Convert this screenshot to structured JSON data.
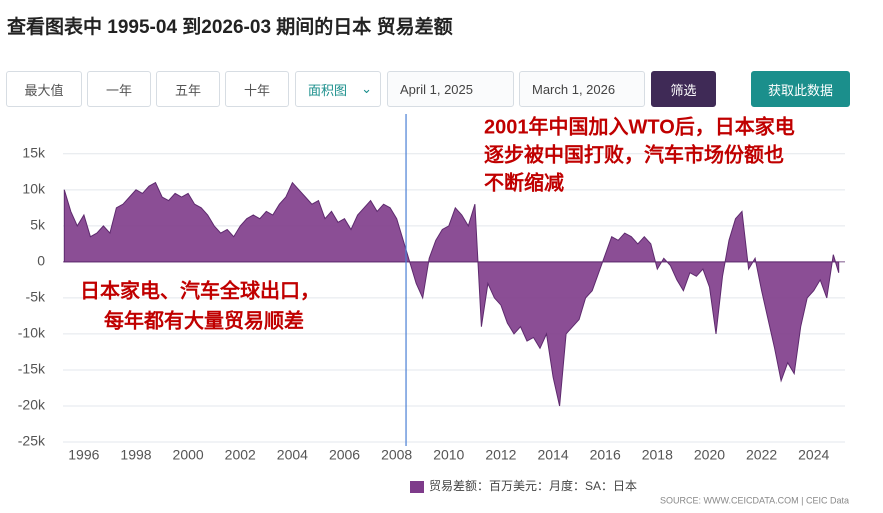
{
  "chart_data": {
    "type": "area",
    "title": "查看图表中 1995-04 到2026-03 期间的日本 贸易差额",
    "series": [
      {
        "name": "贸易差额：百万美元：月度：SA：日本",
        "color": "#7e3b8a",
        "x": [
          1995.25,
          1995.5,
          1995.75,
          1996,
          1996.25,
          1996.5,
          1996.75,
          1997,
          1997.25,
          1997.5,
          1997.75,
          1998,
          1998.25,
          1998.5,
          1998.75,
          1999,
          1999.25,
          1999.5,
          1999.75,
          2000,
          2000.25,
          2000.5,
          2000.75,
          2001,
          2001.25,
          2001.5,
          2001.75,
          2002,
          2002.25,
          2002.5,
          2002.75,
          2003,
          2003.25,
          2003.5,
          2003.75,
          2004,
          2004.25,
          2004.5,
          2004.75,
          2005,
          2005.25,
          2005.5,
          2005.75,
          2006,
          2006.25,
          2006.5,
          2006.75,
          2007,
          2007.25,
          2007.5,
          2007.75,
          2008,
          2008.25,
          2008.5,
          2008.75,
          2009,
          2009.25,
          2009.5,
          2009.75,
          2010,
          2010.25,
          2010.5,
          2010.75,
          2011,
          2011.25,
          2011.5,
          2011.75,
          2012,
          2012.25,
          2012.5,
          2012.75,
          2013,
          2013.25,
          2013.5,
          2013.75,
          2014,
          2014.25,
          2014.5,
          2014.75,
          2015,
          2015.25,
          2015.5,
          2015.75,
          2016,
          2016.25,
          2016.5,
          2016.75,
          2017,
          2017.25,
          2017.5,
          2017.75,
          2018,
          2018.25,
          2018.5,
          2018.75,
          2019,
          2019.25,
          2019.5,
          2019.75,
          2020,
          2020.25,
          2020.5,
          2020.75,
          2021,
          2021.25,
          2021.5,
          2021.75,
          2022,
          2022.25,
          2022.5,
          2022.75,
          2023,
          2023.25,
          2023.5,
          2023.75,
          2024,
          2024.25,
          2024.5,
          2024.75,
          2024.96
        ],
        "values": [
          10000,
          7000,
          5000,
          6500,
          3500,
          4000,
          5000,
          4000,
          7500,
          8000,
          9000,
          10000,
          9500,
          10500,
          11000,
          9000,
          8500,
          9500,
          9000,
          9500,
          8000,
          7500,
          6500,
          5000,
          4000,
          4500,
          3500,
          5000,
          6000,
          6500,
          6000,
          7000,
          6500,
          8000,
          9000,
          11000,
          10000,
          9000,
          8000,
          8500,
          6000,
          7000,
          5500,
          6000,
          4500,
          6500,
          7500,
          8500,
          7000,
          8000,
          7500,
          6000,
          3000,
          0,
          -3000,
          -5000,
          500,
          3000,
          4500,
          5000,
          7500,
          6500,
          5000,
          8000,
          -9000,
          -3000,
          -5000,
          -6000,
          -8500,
          -10000,
          -9000,
          -11000,
          -10500,
          -12000,
          -10000,
          -16000,
          -20000,
          -10000,
          -9000,
          -8000,
          -5000,
          -4000,
          -1500,
          1000,
          3500,
          3000,
          4000,
          3500,
          2500,
          3500,
          2500,
          -1000,
          500,
          -500,
          -2500,
          -4000,
          -1500,
          -2000,
          -1000,
          -3500,
          -10000,
          -2000,
          3000,
          6000,
          7000,
          -1000,
          500,
          -4000,
          -8000,
          -12000,
          -16500,
          -14000,
          -15500,
          -9000,
          -5000,
          -4000,
          -2500,
          -5000,
          1000,
          -1500
        ]
      }
    ],
    "xlim": [
      1995.2,
      2025.2
    ],
    "xticks": [
      1996,
      1998,
      2000,
      2002,
      2004,
      2006,
      2008,
      2010,
      2012,
      2014,
      2016,
      2018,
      2020,
      2022,
      2024
    ],
    "ylim": [
      -25000,
      16500
    ],
    "yticks": [
      {
        "value": 15000,
        "label": "15k"
      },
      {
        "value": 10000,
        "label": "10k"
      },
      {
        "value": 5000,
        "label": "5k"
      },
      0,
      {
        "value": -5000,
        "label": "-5k"
      },
      {
        "value": -10000,
        "label": "-10k"
      },
      {
        "value": -15000,
        "label": "-15k"
      },
      {
        "value": -20000,
        "label": "-20k"
      },
      {
        "value": -25000,
        "label": "-25k"
      }
    ],
    "grid": true,
    "reference_line": {
      "x": 2008.36,
      "color": "#4a7fd4"
    },
    "annotations": [
      {
        "lines": [
          "2001年中国加入WTO后，日本家电",
          "逐步被中国打败，汽车市场份额也",
          "不断缩减"
        ],
        "color": "#c00000"
      },
      {
        "lines": [
          "日本家电、汽车全球出口，",
          "每年都有大量贸易顺差"
        ],
        "color": "#c00000"
      }
    ],
    "source": "SOURCE: WWW.CEICDATA.COM | CEIC Data"
  },
  "toolbar": {
    "buttons": [
      "最大值",
      "一年",
      "五年",
      "十年"
    ],
    "chart_type": "面积图",
    "start_date": "April 1, 2025",
    "end_date": "March 1, 2026",
    "filter": "筛选",
    "download": "获取此数据"
  }
}
